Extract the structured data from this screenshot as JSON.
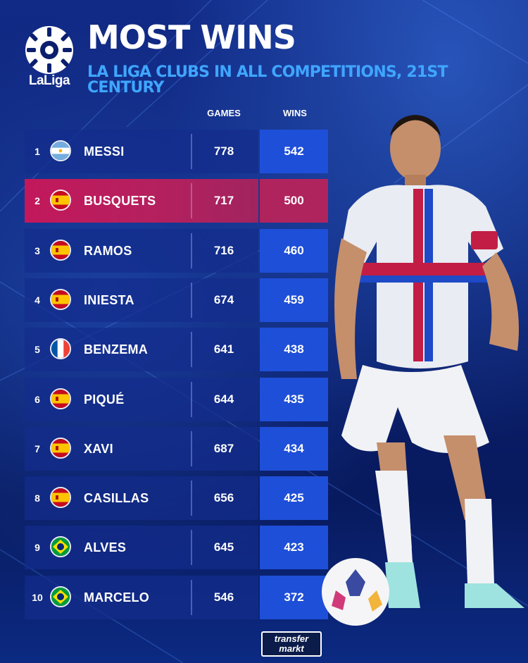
{
  "header": {
    "logo_text": "LaLiga",
    "title": "MOST WINS",
    "subtitle": "LA LIGA CLUBS IN ALL COMPETITIONS, 21ST CENTURY"
  },
  "columns": {
    "games": "GAMES",
    "wins": "WINS"
  },
  "chart_data": {
    "type": "table",
    "title": "MOST WINS",
    "subtitle": "LA LIGA CLUBS IN ALL COMPETITIONS, 21ST CENTURY",
    "columns": [
      "GAMES",
      "WINS"
    ],
    "rows": [
      {
        "rank": "1",
        "flag": "argentina",
        "name": "MESSI",
        "games": "778",
        "wins": "542",
        "highlight": false
      },
      {
        "rank": "2",
        "flag": "spain",
        "name": "BUSQUETS",
        "games": "717",
        "wins": "500",
        "highlight": true
      },
      {
        "rank": "3",
        "flag": "spain",
        "name": "RAMOS",
        "games": "716",
        "wins": "460",
        "highlight": false
      },
      {
        "rank": "4",
        "flag": "spain",
        "name": "INIESTA",
        "games": "674",
        "wins": "459",
        "highlight": false
      },
      {
        "rank": "5",
        "flag": "france",
        "name": "BENZEMA",
        "games": "641",
        "wins": "438",
        "highlight": false
      },
      {
        "rank": "6",
        "flag": "spain",
        "name": "PIQUÉ",
        "games": "644",
        "wins": "435",
        "highlight": false
      },
      {
        "rank": "7",
        "flag": "spain",
        "name": "XAVI",
        "games": "687",
        "wins": "434",
        "highlight": false
      },
      {
        "rank": "8",
        "flag": "spain",
        "name": "CASILLAS",
        "games": "656",
        "wins": "425",
        "highlight": false
      },
      {
        "rank": "9",
        "flag": "brazil",
        "name": "ALVES",
        "games": "645",
        "wins": "423",
        "highlight": false
      },
      {
        "rank": "10",
        "flag": "brazil",
        "name": "MARCELO",
        "games": "546",
        "wins": "372",
        "highlight": false
      }
    ]
  },
  "footer": {
    "brand_line1": "transfer",
    "brand_line2": "markt"
  },
  "colors": {
    "background": "#0a1a5c",
    "row": "#142d8c",
    "wins_cell": "#1e4fd8",
    "highlight": "#c2185b",
    "subtitle": "#3fa6ff"
  }
}
